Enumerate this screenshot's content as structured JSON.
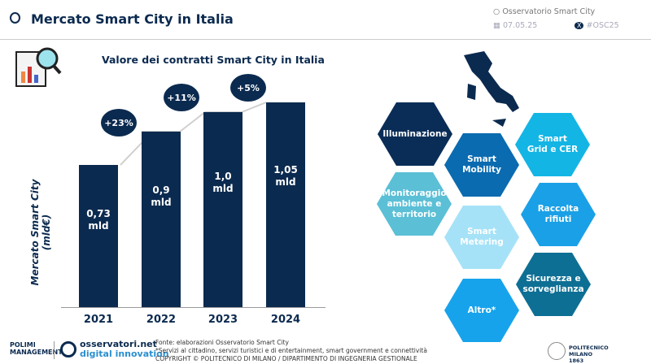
{
  "header": {
    "title": "Mercato Smart City in Italia",
    "observatory": "Osservatorio Smart City",
    "date": "07.05.25",
    "hashtag": "#OSC25"
  },
  "chart_data": {
    "type": "bar",
    "title": "Valore dei contratti Smart City in Italia",
    "ylabel": "Mercato Smart City (mld€)",
    "categories": [
      "2021",
      "2022",
      "2023",
      "2024"
    ],
    "values": [
      0.73,
      0.9,
      1.0,
      1.05
    ],
    "value_labels": [
      "0,73 mld",
      "0,9 mld",
      "1,0 mld",
      "1,05 mld"
    ],
    "growth_labels": [
      "+23%",
      "+11%",
      "+5%"
    ],
    "color": "#0b2a4f"
  },
  "areas": [
    {
      "label": "Illuminazione",
      "color": "#0a2d57"
    },
    {
      "label": "Smart Mobility",
      "color": "#0a6bb0"
    },
    {
      "label": "Smart Grid e CER",
      "color": "#13b5e4"
    },
    {
      "label": "Monitoraggio ambiente e territorio",
      "color": "#5bbfd6"
    },
    {
      "label": "Smart Metering",
      "color": "#a6e2f7"
    },
    {
      "label": "Raccolta rifiuti",
      "color": "#1aa0e6"
    },
    {
      "label": "Sicurezza e sorveglianza",
      "color": "#0e6f94"
    },
    {
      "label": "Altro*",
      "color": "#17a3ec"
    }
  ],
  "footer": {
    "logo1": "POLIMI MANAGEMENT",
    "logo2a": "osservatori.net",
    "logo2b": "digital innovation",
    "source": "Fonte: elaborazioni Osservatorio Smart City",
    "note": "*Servizi al cittadino, servizi turistici e di entertainment, smart government e connettività",
    "copyright": "COPYRIGHT © POLITECNICO DI MILANO / DIPARTIMENTO DI INGEGNERIA GESTIONALE",
    "logo3": "POLITECNICO MILANO 1863"
  }
}
